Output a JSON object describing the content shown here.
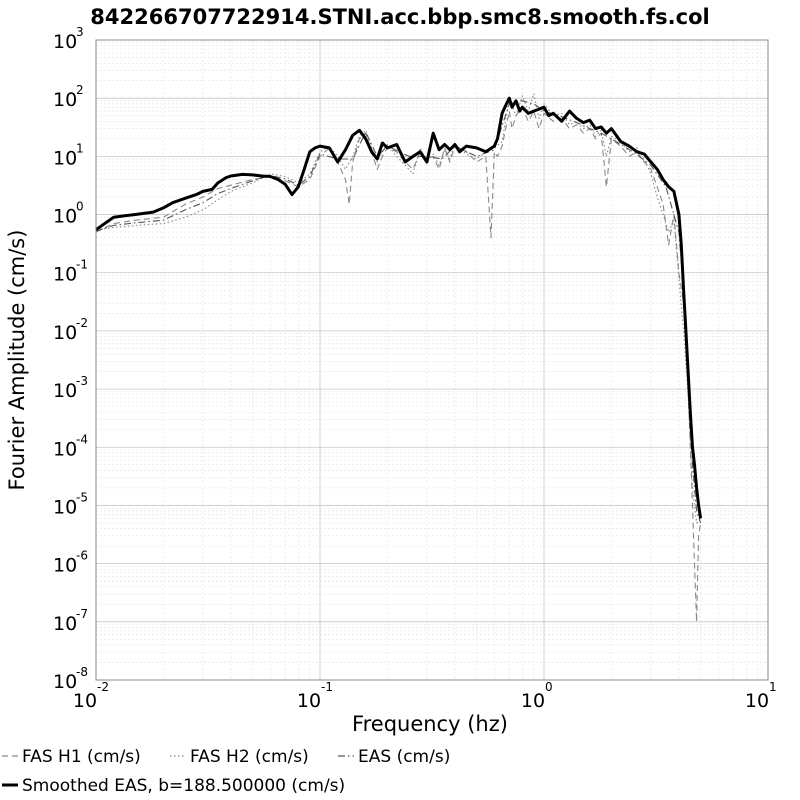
{
  "chart_data": {
    "type": "line",
    "title": "842266707722914.STNI.acc.bbp.smc8.smooth.fs.col",
    "xlabel": "Frequency (hz)",
    "ylabel": "Fourier Amplitude (cm/s)",
    "xscale": "log",
    "yscale": "log",
    "xlim": [
      0.01,
      10
    ],
    "ylim": [
      1e-08,
      1000
    ],
    "x_ticks": [
      {
        "base": "10",
        "exp": "-2"
      },
      {
        "base": "10",
        "exp": "-1"
      },
      {
        "base": "10",
        "exp": "0"
      },
      {
        "base": "10",
        "exp": "1"
      }
    ],
    "y_ticks": [
      {
        "base": "10",
        "exp": "-8"
      },
      {
        "base": "10",
        "exp": "-7"
      },
      {
        "base": "10",
        "exp": "-6"
      },
      {
        "base": "10",
        "exp": "-5"
      },
      {
        "base": "10",
        "exp": "-4"
      },
      {
        "base": "10",
        "exp": "-3"
      },
      {
        "base": "10",
        "exp": "-2"
      },
      {
        "base": "10",
        "exp": "-1"
      },
      {
        "base": "10",
        "exp": "0"
      },
      {
        "base": "10",
        "exp": "1"
      },
      {
        "base": "10",
        "exp": "2"
      },
      {
        "base": "10",
        "exp": "3"
      }
    ],
    "grid": true,
    "legend_position": "bottom",
    "series": [
      {
        "name": "FAS H1 (cm/s)",
        "color": "#888888",
        "style": "dashed",
        "x": [
          0.01,
          0.012,
          0.015,
          0.02,
          0.025,
          0.03,
          0.035,
          0.04,
          0.05,
          0.06,
          0.07,
          0.08,
          0.09,
          0.1,
          0.11,
          0.12,
          0.13,
          0.135,
          0.14,
          0.15,
          0.16,
          0.17,
          0.18,
          0.19,
          0.2,
          0.22,
          0.24,
          0.26,
          0.28,
          0.3,
          0.32,
          0.34,
          0.36,
          0.38,
          0.4,
          0.45,
          0.5,
          0.55,
          0.58,
          0.6,
          0.62,
          0.65,
          0.7,
          0.72,
          0.75,
          0.8,
          0.85,
          0.9,
          0.95,
          1.0,
          1.1,
          1.2,
          1.3,
          1.4,
          1.5,
          1.6,
          1.7,
          1.8,
          1.9,
          2.0,
          2.2,
          2.4,
          2.6,
          2.8,
          3.0,
          3.2,
          3.4,
          3.6,
          3.8,
          4.0,
          4.2,
          4.4,
          4.5,
          4.6,
          4.7,
          4.8,
          4.9,
          5.0
        ],
        "values": [
          0.5,
          0.7,
          0.8,
          0.9,
          1.5,
          2.0,
          2.8,
          3.2,
          4.0,
          4.5,
          3.8,
          3.0,
          4.0,
          10,
          14,
          8,
          4,
          1.5,
          8,
          20,
          25,
          12,
          6,
          10,
          14,
          12,
          8,
          6,
          12,
          9,
          10,
          6,
          14,
          8,
          15,
          12,
          8,
          10,
          0.4,
          12,
          10,
          15,
          60,
          30,
          50,
          70,
          40,
          60,
          30,
          55,
          40,
          45,
          30,
          35,
          25,
          30,
          20,
          25,
          3,
          20,
          15,
          10,
          12,
          8,
          6,
          3,
          1.5,
          0.3,
          1.0,
          0.1,
          0.03,
          0.001,
          0.0001,
          1e-05,
          1e-06,
          1e-07,
          3e-06,
          5e-06
        ]
      },
      {
        "name": "FAS H2 (cm/s)",
        "color": "#888888",
        "style": "dotted",
        "x": [
          0.01,
          0.012,
          0.015,
          0.02,
          0.025,
          0.03,
          0.035,
          0.04,
          0.05,
          0.06,
          0.07,
          0.08,
          0.09,
          0.1,
          0.11,
          0.12,
          0.13,
          0.14,
          0.15,
          0.16,
          0.17,
          0.18,
          0.19,
          0.2,
          0.22,
          0.24,
          0.26,
          0.28,
          0.3,
          0.32,
          0.34,
          0.36,
          0.38,
          0.4,
          0.45,
          0.5,
          0.55,
          0.6,
          0.65,
          0.7,
          0.75,
          0.8,
          0.85,
          0.9,
          0.95,
          1.0,
          1.1,
          1.2,
          1.3,
          1.4,
          1.5,
          1.6,
          1.7,
          1.8,
          1.9,
          2.0,
          2.2,
          2.4,
          2.6,
          2.8,
          3.0,
          3.2,
          3.4,
          3.6,
          3.8,
          4.0,
          4.2,
          4.4,
          4.6,
          4.8,
          5.0
        ],
        "values": [
          0.55,
          0.6,
          0.65,
          0.7,
          0.9,
          1.2,
          1.8,
          2.5,
          3.5,
          5.0,
          4.5,
          3.5,
          5.0,
          12,
          15,
          10,
          6,
          10,
          22,
          28,
          14,
          8,
          12,
          16,
          10,
          7,
          5,
          14,
          8,
          11,
          7,
          13,
          9,
          16,
          11,
          9,
          12,
          14,
          18,
          100,
          50,
          110,
          60,
          120,
          45,
          80,
          50,
          55,
          35,
          40,
          30,
          35,
          22,
          28,
          10,
          22,
          18,
          12,
          14,
          9,
          5,
          2,
          1.0,
          0.5,
          0.8,
          0.08,
          0.01,
          0.0008,
          2e-05,
          5e-06,
          6e-06
        ]
      },
      {
        "name": "EAS (cm/s)",
        "color": "#555555",
        "style": "dashdot",
        "x": [
          0.01,
          0.012,
          0.015,
          0.02,
          0.025,
          0.03,
          0.035,
          0.04,
          0.05,
          0.06,
          0.07,
          0.08,
          0.09,
          0.1,
          0.12,
          0.14,
          0.16,
          0.18,
          0.2,
          0.25,
          0.3,
          0.35,
          0.4,
          0.5,
          0.6,
          0.7,
          0.8,
          0.9,
          1.0,
          1.2,
          1.4,
          1.6,
          1.8,
          2.0,
          2.5,
          3.0,
          3.5,
          4.0,
          4.2,
          4.4,
          4.6,
          4.8,
          5.0
        ],
        "values": [
          0.52,
          0.65,
          0.72,
          0.8,
          1.2,
          1.6,
          2.3,
          2.8,
          3.8,
          4.7,
          4.1,
          3.2,
          4.5,
          11,
          9,
          9,
          26,
          10,
          15,
          10,
          10,
          9,
          15,
          10,
          13,
          80,
          90,
          80,
          60,
          48,
          38,
          30,
          25,
          20,
          12,
          7,
          3,
          0.5,
          0.05,
          0.002,
          5e-05,
          8e-06,
          5e-06
        ]
      },
      {
        "name": "Smoothed EAS, b=188.500000 (cm/s)",
        "color": "#000000",
        "style": "solid",
        "x": [
          0.01,
          0.012,
          0.015,
          0.018,
          0.02,
          0.022,
          0.025,
          0.028,
          0.03,
          0.033,
          0.035,
          0.038,
          0.04,
          0.045,
          0.05,
          0.055,
          0.06,
          0.065,
          0.07,
          0.075,
          0.08,
          0.085,
          0.09,
          0.095,
          0.1,
          0.11,
          0.12,
          0.13,
          0.14,
          0.15,
          0.16,
          0.17,
          0.18,
          0.19,
          0.2,
          0.22,
          0.24,
          0.26,
          0.28,
          0.3,
          0.32,
          0.34,
          0.36,
          0.38,
          0.4,
          0.42,
          0.45,
          0.5,
          0.55,
          0.6,
          0.62,
          0.65,
          0.68,
          0.7,
          0.72,
          0.75,
          0.78,
          0.8,
          0.85,
          0.9,
          0.95,
          1.0,
          1.05,
          1.1,
          1.2,
          1.3,
          1.4,
          1.5,
          1.6,
          1.7,
          1.8,
          1.9,
          2.0,
          2.2,
          2.4,
          2.6,
          2.8,
          3.0,
          3.2,
          3.4,
          3.6,
          3.8,
          4.0,
          4.1,
          4.2,
          4.3,
          4.4,
          4.5,
          4.6,
          4.7,
          4.8,
          4.9,
          5.0
        ],
        "values": [
          0.55,
          0.9,
          1.0,
          1.1,
          1.3,
          1.6,
          1.9,
          2.2,
          2.5,
          2.7,
          3.5,
          4.3,
          4.6,
          4.9,
          4.8,
          4.6,
          4.5,
          4.0,
          3.3,
          2.2,
          3.0,
          6.0,
          12,
          14,
          15,
          14,
          8,
          13,
          23,
          28,
          20,
          12,
          9,
          17,
          14,
          16,
          8,
          10,
          12,
          8,
          25,
          13,
          16,
          13,
          16,
          12,
          15,
          14,
          12,
          15,
          20,
          55,
          80,
          100,
          70,
          90,
          60,
          70,
          55,
          60,
          65,
          70,
          50,
          55,
          40,
          60,
          45,
          38,
          42,
          30,
          32,
          25,
          30,
          18,
          15,
          12,
          11,
          8,
          6,
          4,
          3,
          2.5,
          1.0,
          0.3,
          0.05,
          0.01,
          0.002,
          0.0004,
          0.0001,
          5e-05,
          2e-05,
          1e-05,
          6e-06
        ]
      }
    ]
  }
}
